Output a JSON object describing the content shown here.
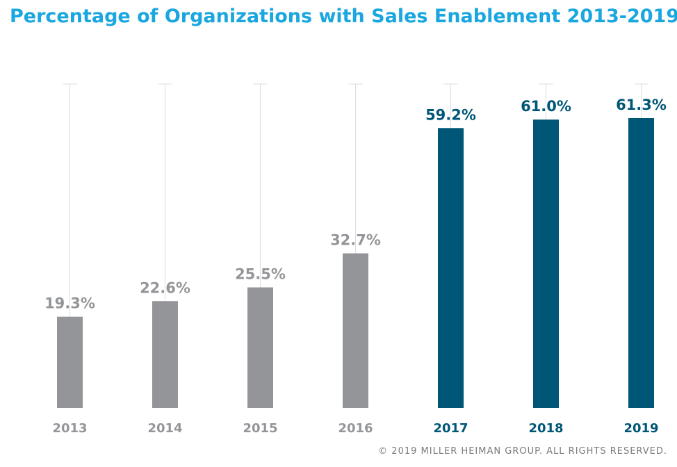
{
  "chart_data": {
    "type": "bar",
    "title": "Percentage of Organizations with Sales Enablement 2013-2019",
    "categories": [
      "2013",
      "2014",
      "2015",
      "2016",
      "2017",
      "2018",
      "2019"
    ],
    "values": [
      19.3,
      22.6,
      25.5,
      32.7,
      59.2,
      61.0,
      61.3
    ],
    "labels": [
      "19.3%",
      "22.6%",
      "25.5%",
      "32.7%",
      "59.2%",
      "61.0%",
      "61.3%"
    ],
    "highlighted": [
      false,
      false,
      false,
      false,
      true,
      true,
      true
    ],
    "ylim": [
      0,
      68.5
    ],
    "grid": false,
    "colors": {
      "base": "#939598",
      "highlight": "#005677",
      "title": "#1aa7e0",
      "gridline": "#d9dde0"
    },
    "xlabel": "",
    "ylabel": ""
  },
  "footer": "© 2019 MILLER HEIMAN GROUP. ALL RIGHTS RESERVED."
}
